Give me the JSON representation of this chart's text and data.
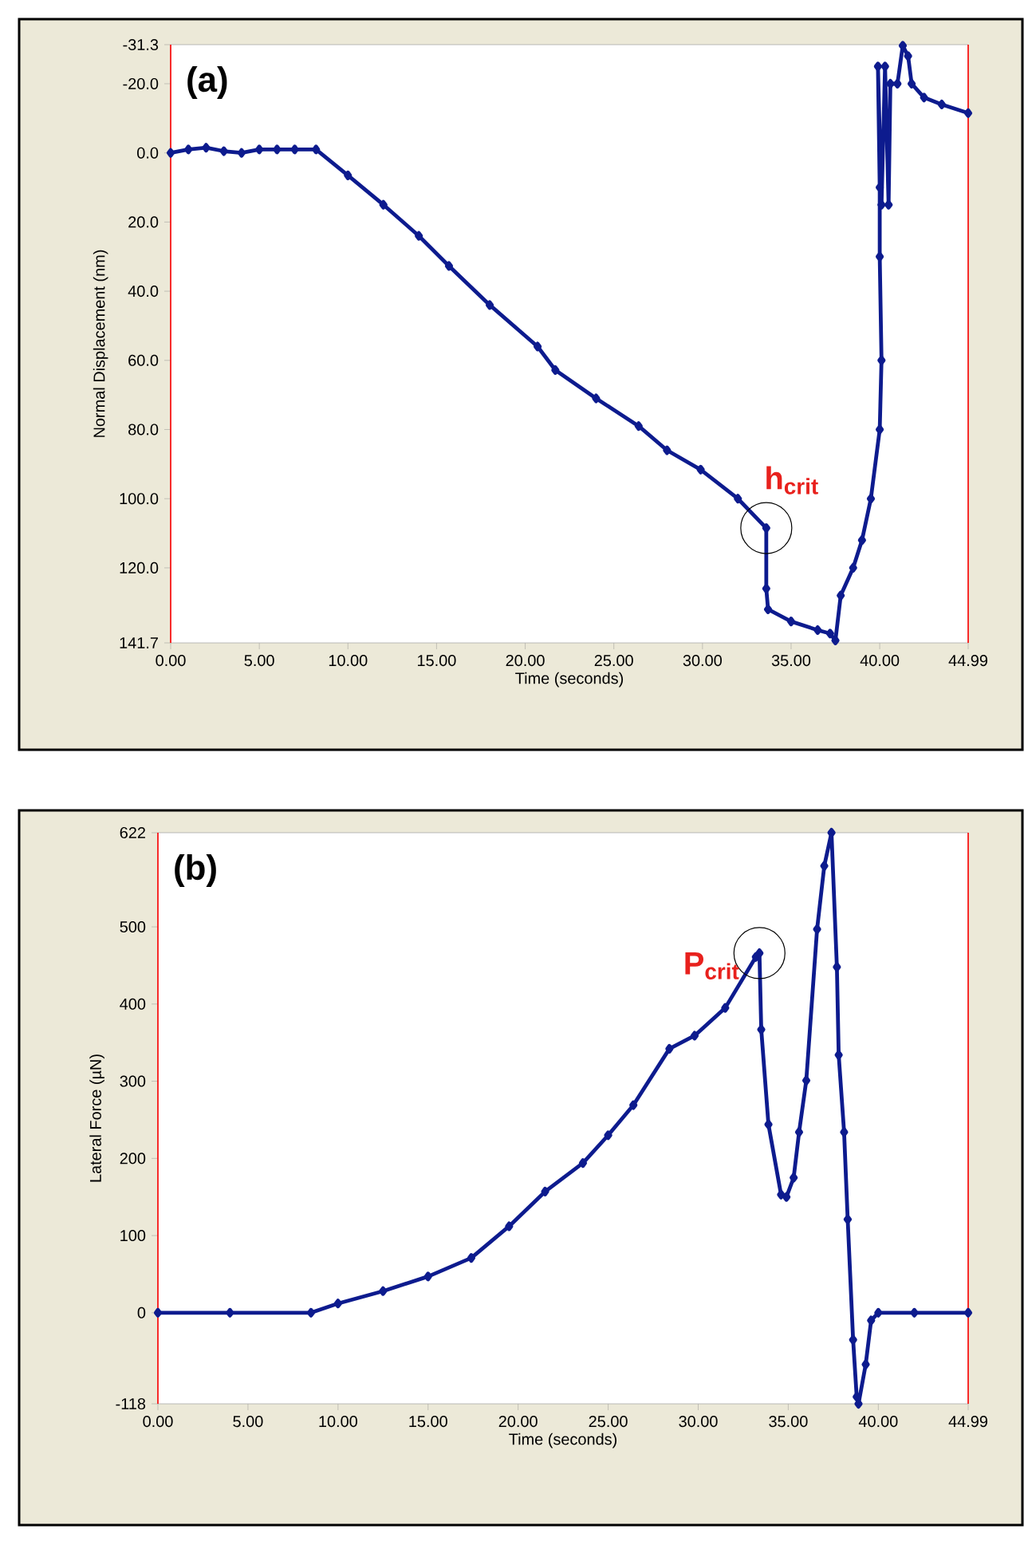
{
  "chart_data": [
    {
      "type": "line",
      "xlabel": "Time (seconds)",
      "ylabel": "Normal Displacement (nm)",
      "color": "#0d1b8e",
      "marker": "diamond",
      "x": [
        0,
        1,
        2,
        3,
        4,
        5,
        6,
        7,
        8.2,
        10,
        12,
        14,
        15.7,
        18,
        20.7,
        21.7,
        24,
        26.4,
        28,
        29.9,
        32,
        33.6,
        33.6,
        33.7,
        35,
        36.5,
        37.2,
        37.5,
        37.8,
        38.5,
        39,
        39.5,
        40,
        40.1,
        40.0,
        40.0,
        39.9,
        40.1,
        40.3,
        40.5,
        40.6,
        41.0,
        41.3,
        41.6,
        41.8,
        42.5,
        43.5,
        44.99
      ],
      "values": [
        0,
        -1,
        -1.5,
        -0.5,
        0,
        -1,
        -1,
        -1,
        -1,
        6.5,
        15,
        24,
        32.7,
        44,
        56,
        62.8,
        71,
        79,
        86,
        91.6,
        100,
        108.5,
        126,
        132,
        135.5,
        138,
        139,
        141,
        128,
        120,
        112,
        100,
        80,
        60,
        30,
        10,
        -25,
        15,
        -25,
        15,
        -20,
        -20,
        -31,
        -28,
        -20,
        -16,
        -14,
        -11.5
      ],
      "xlim": [
        0,
        44.99
      ],
      "ylim": [
        141.7,
        -31.3
      ],
      "xticks": [
        {
          "value": 0,
          "label": "0.00"
        },
        {
          "value": 5,
          "label": "5.00"
        },
        {
          "value": 10,
          "label": "10.00"
        },
        {
          "value": 15,
          "label": "15.00"
        },
        {
          "value": 20,
          "label": "20.00"
        },
        {
          "value": 25,
          "label": "25.00"
        },
        {
          "value": 30,
          "label": "30.00"
        },
        {
          "value": 35,
          "label": "35.00"
        },
        {
          "value": 40,
          "label": "40.00"
        },
        {
          "value": 44.99,
          "label": "44.99"
        }
      ],
      "yticks": [
        -31.3,
        {
          "value": -20,
          "label": "-20.0"
        },
        {
          "value": 0,
          "label": "0.0"
        },
        {
          "value": 20,
          "label": "20.0"
        },
        {
          "value": 40,
          "label": "40.0"
        },
        {
          "value": 60,
          "label": "60.0"
        },
        {
          "value": 80,
          "label": "80.0"
        },
        {
          "value": 100,
          "label": "100.0"
        },
        {
          "value": 120,
          "label": "120.0"
        },
        141.7
      ],
      "annotations": [
        "(a)",
        {
          "text": "h$_{crit}$",
          "x": 33.6,
          "y": 108.5
        }
      ]
    },
    {
      "type": "line",
      "xlabel": "Time (seconds)",
      "ylabel": "Lateral Force (µN)",
      "color": "#0d1b8e",
      "marker": "diamond",
      "x": [
        0,
        4,
        8.5,
        10,
        12.5,
        15,
        17.4,
        19.5,
        21.5,
        23.6,
        25,
        26.4,
        28.4,
        29.8,
        31.5,
        33.2,
        33.4,
        33.5,
        33.9,
        34.6,
        34.9,
        35.3,
        35.6,
        36,
        36.6,
        37,
        37.4,
        37.7,
        37.8,
        38.1,
        38.3,
        38.6,
        38.8,
        38.9,
        39.3,
        39.6,
        40,
        42,
        44.99
      ],
      "values": [
        0,
        0,
        0,
        12,
        28,
        47,
        71,
        112,
        157,
        194,
        230,
        269,
        342,
        359,
        395,
        461,
        466,
        367,
        244,
        153,
        150,
        175,
        234,
        301,
        497,
        579,
        622,
        448,
        334,
        234,
        121,
        -35,
        -109,
        -118,
        -67,
        -10,
        0,
        0,
        0
      ],
      "xlim": [
        0,
        44.99
      ],
      "ylim": [
        -118,
        622
      ],
      "xticks": [
        {
          "value": 0,
          "label": "0.00"
        },
        {
          "value": 5,
          "label": "5.00"
        },
        {
          "value": 10,
          "label": "10.00"
        },
        {
          "value": 15,
          "label": "15.00"
        },
        {
          "value": 20,
          "label": "20.00"
        },
        {
          "value": 25,
          "label": "25.00"
        },
        {
          "value": 30,
          "label": "30.00"
        },
        {
          "value": 35,
          "label": "35.00"
        },
        {
          "value": 40,
          "label": "40.00"
        },
        {
          "value": 44.99,
          "label": "44.99"
        }
      ],
      "yticks": [
        -118,
        0,
        100,
        200,
        300,
        400,
        500,
        622
      ],
      "annotations": [
        "(b)",
        {
          "text": "P$_{crit}$",
          "x": 33.4,
          "y": 466
        }
      ]
    }
  ]
}
